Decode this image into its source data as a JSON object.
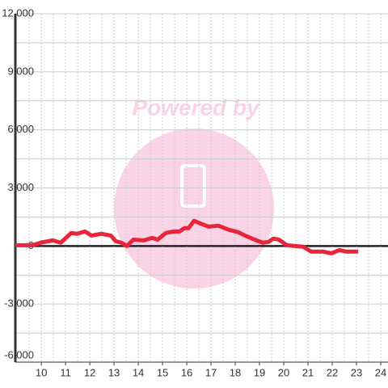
{
  "chart_data": {
    "type": "line",
    "watermark": "Powered by",
    "x": [
      8.93,
      9.63,
      9.97,
      10.47,
      10.8,
      11.23,
      11.47,
      11.8,
      12.07,
      12.47,
      12.87,
      13.07,
      13.3,
      13.53,
      13.8,
      14.23,
      14.57,
      14.8,
      15.13,
      15.47,
      15.7,
      15.9,
      16.07,
      16.3,
      16.63,
      16.9,
      17.3,
      17.73,
      18.13,
      18.47,
      18.8,
      19.13,
      19.37,
      19.57,
      19.8,
      20.13,
      20.47,
      20.8,
      21.13,
      21.63,
      21.97,
      22.3,
      22.57,
      23.07
    ],
    "series": [
      {
        "color": "#e8253a",
        "values": [
          40,
          40,
          170,
          290,
          170,
          670,
          630,
          750,
          540,
          630,
          540,
          250,
          170,
          0,
          330,
          290,
          420,
          330,
          670,
          750,
          750,
          920,
          920,
          1300,
          1130,
          1000,
          1050,
          840,
          710,
          500,
          330,
          170,
          210,
          380,
          330,
          40,
          0,
          -40,
          -290,
          -290,
          -380,
          -210,
          -290,
          -290
        ]
      }
    ],
    "xlim": [
      8.93,
      24.3
    ],
    "ylim": [
      -6000,
      12000
    ],
    "xticks": [
      10,
      11,
      12,
      13,
      14,
      15,
      16,
      17,
      18,
      19,
      20,
      21,
      22,
      23,
      24
    ],
    "yticks": [
      {
        "value": 12000,
        "label": "12,000"
      },
      {
        "value": 9000,
        "label": "9,000"
      },
      {
        "value": 6000,
        "label": "6,000"
      },
      {
        "value": 3000,
        "label": "3,000"
      },
      0,
      {
        "value": -3000,
        "label": "-3,000"
      },
      {
        "value": -6000,
        "label": "-6,000"
      }
    ],
    "x_minor_ticks": [
      9.5,
      10.5,
      11.5,
      12.5,
      13.5,
      14.5,
      15.5,
      16.5,
      17.5,
      18.5,
      19.5,
      20.5,
      21.5,
      22.5,
      23.5
    ],
    "y_minor_ticks": [
      10500,
      7500,
      4500,
      1500,
      -1500,
      -4500
    ],
    "grid": true
  }
}
